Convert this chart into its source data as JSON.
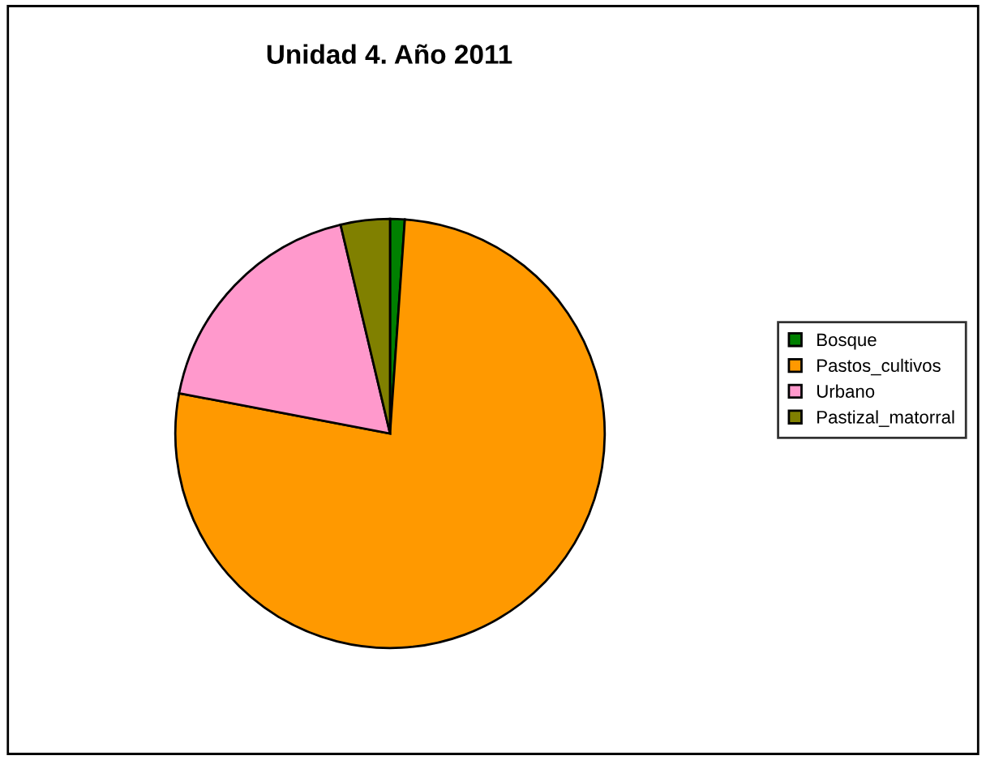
{
  "chart_data": {
    "type": "pie",
    "title": "Unidad 4. Año 2011",
    "categories": [
      "Bosque",
      "Pastos_cultivos",
      "Urbano",
      "Pastizal_matorral"
    ],
    "values": [
      1.1,
      76.9,
      18.3,
      3.7
    ],
    "colors": [
      "#008000",
      "#ff9900",
      "#ff99cc",
      "#808000"
    ],
    "legend": "right"
  }
}
